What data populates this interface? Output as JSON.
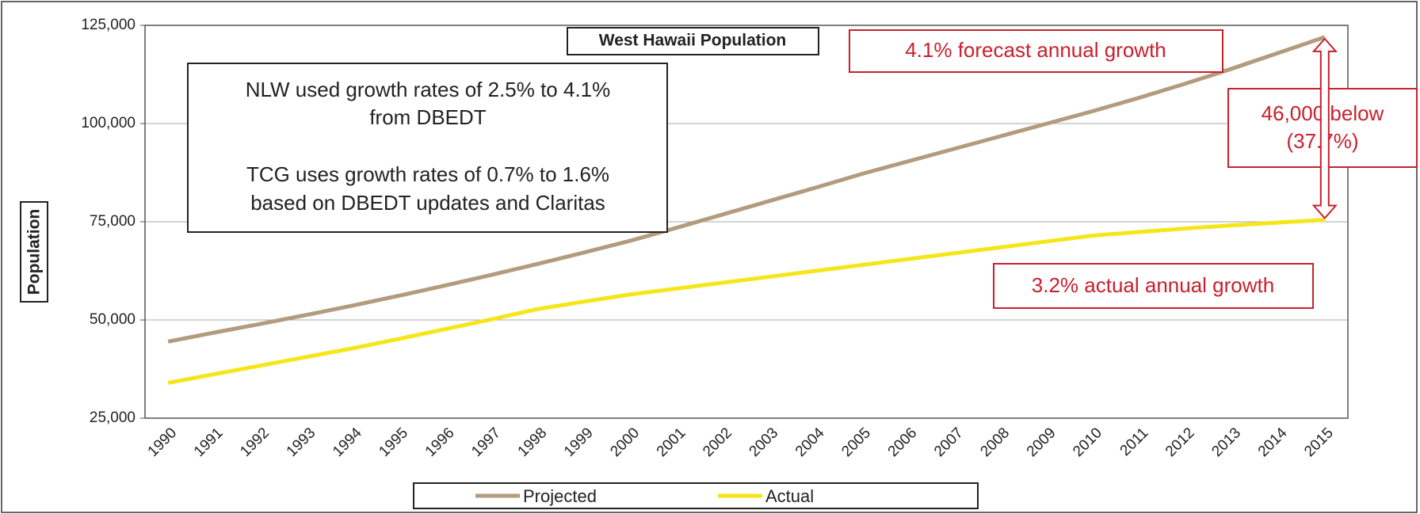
{
  "chart_data": {
    "type": "line",
    "title": "West Hawaii Population",
    "y_label": "Population",
    "categories": [
      "1990",
      "1991",
      "1992",
      "1993",
      "1994",
      "1995",
      "1996",
      "1997",
      "1998",
      "1999",
      "2000",
      "2001",
      "2002",
      "2003",
      "2004",
      "2005",
      "2006",
      "2007",
      "2008",
      "2009",
      "2010",
      "2011",
      "2012",
      "2013",
      "2014",
      "2015"
    ],
    "series": [
      {
        "name": "Projected",
        "color": "#b39b7d",
        "values": [
          44500,
          46800,
          49000,
          51300,
          53700,
          56200,
          58800,
          61500,
          64300,
          67200,
          70200,
          73500,
          76900,
          80300,
          83700,
          87200,
          90400,
          93600,
          96800,
          100000,
          103200,
          106600,
          110200,
          114000,
          118000,
          122000
        ]
      },
      {
        "name": "Actual",
        "color": "#f5e61a",
        "values": [
          34000,
          36200,
          38400,
          40600,
          42800,
          45200,
          47700,
          50200,
          52800,
          54700,
          56500,
          58000,
          59500,
          61000,
          62500,
          64000,
          65500,
          67000,
          68500,
          70000,
          71500,
          72400,
          73300,
          74100,
          74800,
          75500
        ]
      }
    ],
    "ylim": [
      25000,
      125000
    ],
    "yticks": [
      {
        "value": 25000,
        "label": "25,000"
      },
      {
        "value": 50000,
        "label": "50,000"
      },
      {
        "value": 75000,
        "label": "75,000"
      },
      {
        "value": 100000,
        "label": "100,000"
      },
      {
        "value": 125000,
        "label": "125,000"
      }
    ],
    "grid": true,
    "legend": "bottom",
    "note_lines": [
      "NLW used growth rates of 2.5% to 4.1%",
      "from DBEDT",
      "TCG uses growth rates of 0.7% to 1.6%",
      "based on DBEDT updates and Claritas"
    ],
    "forecast_note": "4.1% forecast annual growth",
    "gap_note_lines": [
      "46,000 below",
      "(37.7%)"
    ],
    "actual_note": "3.2% actual annual growth"
  }
}
